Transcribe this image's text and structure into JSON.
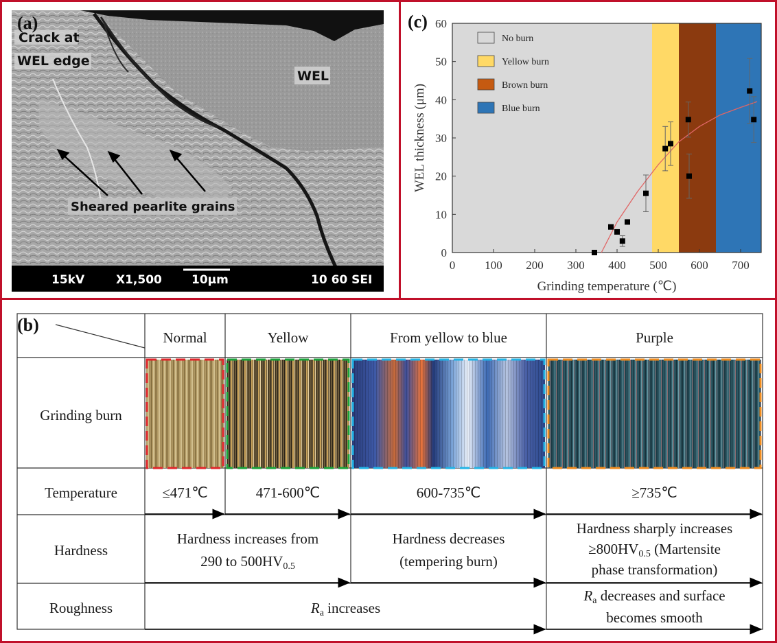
{
  "panels": {
    "a": {
      "label": "(a)",
      "annotations": {
        "crack_line1": "Crack at",
        "crack_line2": "WEL edge",
        "wel": "WEL",
        "sheared": "Sheared pearlite grains"
      },
      "scale_bar": {
        "voltage": "15kV",
        "magnification": "X1,500",
        "scale": "10μm",
        "code": "10 60 SEI"
      }
    },
    "b": {
      "label": "(b)",
      "columns": [
        "Normal",
        "Yellow",
        "From yellow to blue",
        "Purple"
      ],
      "rows": {
        "grinding_burn": "Grinding burn",
        "temperature": "Temperature",
        "hardness": "Hardness",
        "roughness": "Roughness"
      },
      "temperatures": [
        "≤471℃",
        "471-600℃",
        "600-735℃",
        "≥735℃"
      ],
      "hardness_texts": {
        "h1_line1": "Hardness increases from",
        "h1_line2_pre": "290 to 500HV",
        "h1_line2_sub": "0.5",
        "h2_line1": "Hardness decreases",
        "h2_line2": "(tempering burn)",
        "h3_line1": "Hardness sharply increases",
        "h3_line2_pre": "≥800HV",
        "h3_line2_sub": "0.5",
        "h3_line2_post": " (Martensite",
        "h3_line3": "phase transformation)"
      },
      "roughness_texts": {
        "r1_sym": "R",
        "r1_sub": "a",
        "r1_text": " increases",
        "r2_sym": "R",
        "r2_sub": "a",
        "r2_text": " decreases and surface",
        "r2_line2": "becomes smooth"
      },
      "colors": {
        "normal_border": "#e0262b",
        "yellow_border": "#1aa33a",
        "blue_border": "#22b4e6",
        "purple_border": "#f08c1e"
      }
    },
    "c": {
      "label": "(c)"
    }
  },
  "chart_data": {
    "type": "scatter",
    "xlabel": "Grinding temperature (℃)",
    "ylabel": "WEL thickness (μm)",
    "xlim": [
      0,
      750
    ],
    "ylim": [
      0,
      60
    ],
    "xticks": [
      0,
      100,
      200,
      300,
      400,
      500,
      600,
      700
    ],
    "yticks": [
      0,
      10,
      20,
      30,
      40,
      50,
      60
    ],
    "regions": [
      {
        "name": "No burn",
        "from": 0,
        "to": 485,
        "color": "#d9d9d9"
      },
      {
        "name": "Yellow burn",
        "from": 485,
        "to": 550,
        "color": "#ffd966"
      },
      {
        "name": "Brown burn",
        "from": 550,
        "to": 640,
        "color": "#8b3a0f"
      },
      {
        "name": "Blue burn",
        "from": 640,
        "to": 750,
        "color": "#2e75b6"
      }
    ],
    "legend": [
      {
        "name": "No burn",
        "color": "#d9d9d9"
      },
      {
        "name": "Yellow burn",
        "color": "#ffd966"
      },
      {
        "name": "Brown burn",
        "color": "#c55a11"
      },
      {
        "name": "Blue burn",
        "color": "#2e75b6"
      }
    ],
    "legend_placement": "top-left",
    "points": [
      {
        "x": 345,
        "y": 0,
        "err": 0
      },
      {
        "x": 385,
        "y": 6.7,
        "err": 0
      },
      {
        "x": 400,
        "y": 5.4,
        "err": 0
      },
      {
        "x": 413,
        "y": 3.0,
        "err": 1.4
      },
      {
        "x": 425,
        "y": 8.0,
        "err": 0
      },
      {
        "x": 470,
        "y": 15.5,
        "err": 4.8
      },
      {
        "x": 517,
        "y": 27.2,
        "err": 5.8
      },
      {
        "x": 530,
        "y": 28.5,
        "err": 5.7
      },
      {
        "x": 573,
        "y": 34.8,
        "err": 4.6
      },
      {
        "x": 575,
        "y": 20.0,
        "err": 5.8
      },
      {
        "x": 722,
        "y": 42.3,
        "err": 8.5
      },
      {
        "x": 732,
        "y": 34.8,
        "err": 6.0
      }
    ],
    "fit_curve": [
      [
        362,
        0
      ],
      [
        400,
        8
      ],
      [
        450,
        16
      ],
      [
        500,
        23
      ],
      [
        550,
        29
      ],
      [
        600,
        33
      ],
      [
        650,
        36
      ],
      [
        700,
        38
      ],
      [
        740,
        39.5
      ]
    ],
    "fit_color": "#e06666"
  }
}
